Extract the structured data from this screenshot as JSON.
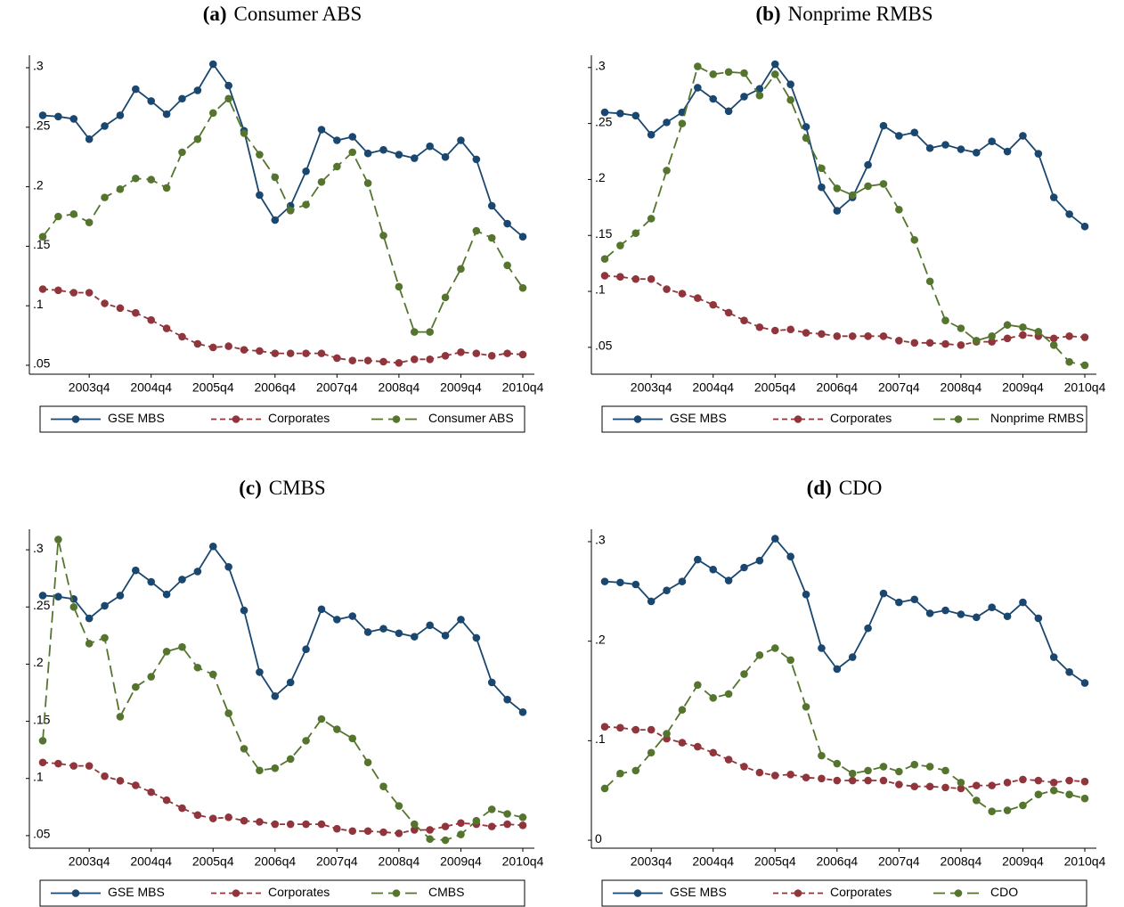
{
  "chart_data": [
    {
      "type": "line",
      "label": "(a)",
      "title": "Consumer ABS",
      "categories": [
        null,
        null,
        null,
        "2003q4",
        null,
        null,
        null,
        "2004q4",
        null,
        null,
        null,
        "2005q4",
        null,
        null,
        null,
        "2006q4",
        null,
        null,
        null,
        "2007q4",
        null,
        null,
        null,
        "2008q4",
        null,
        null,
        null,
        "2009q4",
        null,
        null,
        null,
        "2010q4"
      ],
      "ylim": [
        0.0425,
        0.3105
      ],
      "yticks": [
        {
          "value": 0.05,
          "label": ".05"
        },
        {
          "value": 0.1,
          "label": ".1"
        },
        {
          "value": 0.15,
          "label": ".15"
        },
        {
          "value": 0.2,
          "label": ".2"
        },
        {
          "value": 0.25,
          "label": ".25"
        },
        {
          "value": 0.3,
          "label": ".3"
        }
      ],
      "series": [
        {
          "name": "GSE MBS",
          "color": "#1a476f",
          "dash": "solid",
          "values": [
            0.26,
            0.259,
            0.257,
            0.24,
            0.251,
            0.26,
            0.282,
            0.272,
            0.261,
            0.274,
            0.281,
            0.303,
            0.285,
            0.247,
            0.193,
            0.172,
            0.184,
            0.213,
            0.248,
            0.239,
            0.242,
            0.228,
            0.231,
            0.227,
            0.224,
            0.234,
            0.225,
            0.239,
            0.223,
            0.184,
            0.169,
            0.158
          ]
        },
        {
          "name": "Corporates",
          "color": "#90353b",
          "dash": "short",
          "values": [
            0.114,
            0.113,
            0.111,
            0.111,
            0.102,
            0.098,
            0.094,
            0.088,
            0.081,
            0.074,
            0.068,
            0.065,
            0.066,
            0.063,
            0.062,
            0.06,
            0.06,
            0.06,
            0.06,
            0.056,
            0.054,
            0.054,
            0.053,
            0.052,
            0.055,
            0.055,
            0.058,
            0.061,
            0.06,
            0.058,
            0.06,
            0.059
          ]
        },
        {
          "name": "Consumer ABS",
          "color": "#55752f",
          "dash": "long",
          "values": [
            0.158,
            0.175,
            0.177,
            0.17,
            0.191,
            0.198,
            0.207,
            0.206,
            0.199,
            0.229,
            0.24,
            0.262,
            0.274,
            0.245,
            0.227,
            0.208,
            0.18,
            0.185,
            0.204,
            0.217,
            0.229,
            0.203,
            0.159,
            0.116,
            0.078,
            0.078,
            0.107,
            0.131,
            0.163,
            0.157,
            0.134,
            0.115
          ]
        }
      ]
    },
    {
      "type": "line",
      "label": "(b)",
      "title": "Nonprime RMBS",
      "categories": [
        null,
        null,
        null,
        "2003q4",
        null,
        null,
        null,
        "2004q4",
        null,
        null,
        null,
        "2005q4",
        null,
        null,
        null,
        "2006q4",
        null,
        null,
        null,
        "2007q4",
        null,
        null,
        null,
        "2008q4",
        null,
        null,
        null,
        "2009q4",
        null,
        null,
        null,
        "2010q4"
      ],
      "ylim": [
        0.026,
        0.311
      ],
      "yticks": [
        {
          "value": 0.05,
          "label": ".05"
        },
        {
          "value": 0.1,
          "label": ".1"
        },
        {
          "value": 0.15,
          "label": ".15"
        },
        {
          "value": 0.2,
          "label": ".2"
        },
        {
          "value": 0.25,
          "label": ".25"
        },
        {
          "value": 0.3,
          "label": ".3"
        }
      ],
      "series": [
        {
          "name": "GSE MBS",
          "color": "#1a476f",
          "dash": "solid",
          "values": [
            0.26,
            0.259,
            0.257,
            0.24,
            0.251,
            0.26,
            0.282,
            0.272,
            0.261,
            0.274,
            0.281,
            0.303,
            0.285,
            0.247,
            0.193,
            0.172,
            0.184,
            0.213,
            0.248,
            0.239,
            0.242,
            0.228,
            0.231,
            0.227,
            0.224,
            0.234,
            0.225,
            0.239,
            0.223,
            0.184,
            0.169,
            0.158
          ]
        },
        {
          "name": "Corporates",
          "color": "#90353b",
          "dash": "short",
          "values": [
            0.114,
            0.113,
            0.111,
            0.111,
            0.102,
            0.098,
            0.094,
            0.088,
            0.081,
            0.074,
            0.068,
            0.065,
            0.066,
            0.063,
            0.062,
            0.06,
            0.06,
            0.06,
            0.06,
            0.056,
            0.054,
            0.054,
            0.053,
            0.052,
            0.055,
            0.055,
            0.058,
            0.061,
            0.06,
            0.058,
            0.06,
            0.059
          ]
        },
        {
          "name": "Nonprime RMBS",
          "color": "#55752f",
          "dash": "long",
          "values": [
            0.129,
            0.141,
            0.152,
            0.165,
            0.208,
            0.25,
            0.301,
            0.294,
            0.296,
            0.295,
            0.275,
            0.294,
            0.271,
            0.237,
            0.21,
            0.192,
            0.186,
            0.194,
            0.196,
            0.173,
            0.146,
            0.109,
            0.074,
            0.067,
            0.056,
            0.06,
            0.07,
            0.068,
            0.064,
            0.052,
            0.037,
            0.034
          ]
        }
      ]
    },
    {
      "type": "line",
      "label": "(c)",
      "title": "CMBS",
      "categories": [
        null,
        null,
        null,
        "2003q4",
        null,
        null,
        null,
        "2004q4",
        null,
        null,
        null,
        "2005q4",
        null,
        null,
        null,
        "2006q4",
        null,
        null,
        null,
        "2007q4",
        null,
        null,
        null,
        "2008q4",
        null,
        null,
        null,
        "2009q4",
        null,
        null,
        null,
        "2010q4"
      ],
      "ylim": [
        0.039,
        0.318
      ],
      "yticks": [
        {
          "value": 0.05,
          "label": ".05"
        },
        {
          "value": 0.1,
          "label": ".1"
        },
        {
          "value": 0.15,
          "label": ".15"
        },
        {
          "value": 0.2,
          "label": ".2"
        },
        {
          "value": 0.25,
          "label": ".25"
        },
        {
          "value": 0.3,
          "label": ".3"
        }
      ],
      "series": [
        {
          "name": "GSE MBS",
          "color": "#1a476f",
          "dash": "solid",
          "values": [
            0.26,
            0.259,
            0.257,
            0.24,
            0.251,
            0.26,
            0.282,
            0.272,
            0.261,
            0.274,
            0.281,
            0.303,
            0.285,
            0.247,
            0.193,
            0.172,
            0.184,
            0.213,
            0.248,
            0.239,
            0.242,
            0.228,
            0.231,
            0.227,
            0.224,
            0.234,
            0.225,
            0.239,
            0.223,
            0.184,
            0.169,
            0.158
          ]
        },
        {
          "name": "Corporates",
          "color": "#90353b",
          "dash": "short",
          "values": [
            0.114,
            0.113,
            0.111,
            0.111,
            0.102,
            0.098,
            0.094,
            0.088,
            0.081,
            0.074,
            0.068,
            0.065,
            0.066,
            0.063,
            0.062,
            0.06,
            0.06,
            0.06,
            0.06,
            0.056,
            0.054,
            0.054,
            0.053,
            0.052,
            0.055,
            0.055,
            0.058,
            0.061,
            0.06,
            0.058,
            0.06,
            0.059
          ]
        },
        {
          "name": "CMBS",
          "color": "#55752f",
          "dash": "long",
          "values": [
            0.133,
            0.309,
            0.25,
            0.218,
            0.223,
            0.154,
            0.18,
            0.189,
            0.211,
            0.215,
            0.197,
            0.191,
            0.157,
            0.126,
            0.107,
            0.109,
            0.117,
            0.133,
            0.152,
            0.143,
            0.135,
            0.114,
            0.093,
            0.076,
            0.06,
            0.047,
            0.046,
            0.051,
            0.063,
            0.073,
            0.069,
            0.066
          ]
        }
      ]
    },
    {
      "type": "line",
      "label": "(d)",
      "title": "CDO",
      "categories": [
        null,
        null,
        null,
        "2003q4",
        null,
        null,
        null,
        "2004q4",
        null,
        null,
        null,
        "2005q4",
        null,
        null,
        null,
        "2006q4",
        null,
        null,
        null,
        "2007q4",
        null,
        null,
        null,
        "2008q4",
        null,
        null,
        null,
        "2009q4",
        null,
        null,
        null,
        "2010q4"
      ],
      "ylim": [
        -0.008,
        0.3125
      ],
      "yticks": [
        0,
        {
          "value": 0.1,
          "label": ".1"
        },
        {
          "value": 0.2,
          "label": ".2"
        },
        {
          "value": 0.3,
          "label": ".3"
        }
      ],
      "series": [
        {
          "name": "GSE MBS",
          "color": "#1a476f",
          "dash": "solid",
          "values": [
            0.26,
            0.259,
            0.257,
            0.24,
            0.251,
            0.26,
            0.282,
            0.272,
            0.261,
            0.274,
            0.281,
            0.303,
            0.285,
            0.247,
            0.193,
            0.172,
            0.184,
            0.213,
            0.248,
            0.239,
            0.242,
            0.228,
            0.231,
            0.227,
            0.224,
            0.234,
            0.225,
            0.239,
            0.223,
            0.184,
            0.169,
            0.158
          ]
        },
        {
          "name": "Corporates",
          "color": "#90353b",
          "dash": "short",
          "values": [
            0.114,
            0.113,
            0.111,
            0.111,
            0.102,
            0.098,
            0.094,
            0.088,
            0.081,
            0.074,
            0.068,
            0.065,
            0.066,
            0.063,
            0.062,
            0.06,
            0.06,
            0.06,
            0.06,
            0.056,
            0.054,
            0.054,
            0.053,
            0.052,
            0.055,
            0.055,
            0.058,
            0.061,
            0.06,
            0.058,
            0.06,
            0.059
          ]
        },
        {
          "name": "CDO",
          "color": "#55752f",
          "dash": "long",
          "values": [
            0.052,
            0.067,
            0.07,
            0.088,
            0.107,
            0.131,
            0.156,
            0.143,
            0.147,
            0.167,
            0.186,
            0.193,
            0.181,
            0.134,
            0.085,
            0.077,
            0.067,
            0.07,
            0.074,
            0.069,
            0.076,
            0.074,
            0.07,
            0.058,
            0.04,
            0.029,
            0.03,
            0.035,
            0.046,
            0.05,
            0.046,
            0.042
          ]
        }
      ]
    }
  ]
}
